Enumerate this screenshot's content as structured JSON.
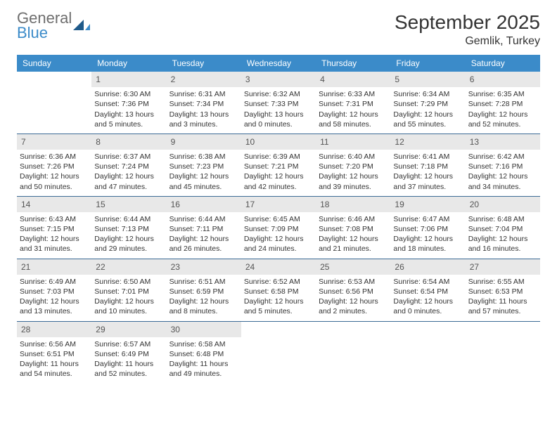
{
  "logo": {
    "line1": "General",
    "line2": "Blue"
  },
  "title": "September 2025",
  "location": "Gemlik, Turkey",
  "colors": {
    "header_bg": "#3b8bc9",
    "header_fg": "#ffffff",
    "daynum_bg": "#e8e8e8",
    "rule": "#3b6a95",
    "logo_gray": "#6e6e6e",
    "logo_blue": "#3b8bc9",
    "text": "#333333"
  },
  "day_headers": [
    "Sunday",
    "Monday",
    "Tuesday",
    "Wednesday",
    "Thursday",
    "Friday",
    "Saturday"
  ],
  "weeks": [
    [
      {
        "empty": true
      },
      {
        "num": "1",
        "sunrise": "Sunrise: 6:30 AM",
        "sunset": "Sunset: 7:36 PM",
        "daylight1": "Daylight: 13 hours",
        "daylight2": "and 5 minutes."
      },
      {
        "num": "2",
        "sunrise": "Sunrise: 6:31 AM",
        "sunset": "Sunset: 7:34 PM",
        "daylight1": "Daylight: 13 hours",
        "daylight2": "and 3 minutes."
      },
      {
        "num": "3",
        "sunrise": "Sunrise: 6:32 AM",
        "sunset": "Sunset: 7:33 PM",
        "daylight1": "Daylight: 13 hours",
        "daylight2": "and 0 minutes."
      },
      {
        "num": "4",
        "sunrise": "Sunrise: 6:33 AM",
        "sunset": "Sunset: 7:31 PM",
        "daylight1": "Daylight: 12 hours",
        "daylight2": "and 58 minutes."
      },
      {
        "num": "5",
        "sunrise": "Sunrise: 6:34 AM",
        "sunset": "Sunset: 7:29 PM",
        "daylight1": "Daylight: 12 hours",
        "daylight2": "and 55 minutes."
      },
      {
        "num": "6",
        "sunrise": "Sunrise: 6:35 AM",
        "sunset": "Sunset: 7:28 PM",
        "daylight1": "Daylight: 12 hours",
        "daylight2": "and 52 minutes."
      }
    ],
    [
      {
        "num": "7",
        "sunrise": "Sunrise: 6:36 AM",
        "sunset": "Sunset: 7:26 PM",
        "daylight1": "Daylight: 12 hours",
        "daylight2": "and 50 minutes."
      },
      {
        "num": "8",
        "sunrise": "Sunrise: 6:37 AM",
        "sunset": "Sunset: 7:24 PM",
        "daylight1": "Daylight: 12 hours",
        "daylight2": "and 47 minutes."
      },
      {
        "num": "9",
        "sunrise": "Sunrise: 6:38 AM",
        "sunset": "Sunset: 7:23 PM",
        "daylight1": "Daylight: 12 hours",
        "daylight2": "and 45 minutes."
      },
      {
        "num": "10",
        "sunrise": "Sunrise: 6:39 AM",
        "sunset": "Sunset: 7:21 PM",
        "daylight1": "Daylight: 12 hours",
        "daylight2": "and 42 minutes."
      },
      {
        "num": "11",
        "sunrise": "Sunrise: 6:40 AM",
        "sunset": "Sunset: 7:20 PM",
        "daylight1": "Daylight: 12 hours",
        "daylight2": "and 39 minutes."
      },
      {
        "num": "12",
        "sunrise": "Sunrise: 6:41 AM",
        "sunset": "Sunset: 7:18 PM",
        "daylight1": "Daylight: 12 hours",
        "daylight2": "and 37 minutes."
      },
      {
        "num": "13",
        "sunrise": "Sunrise: 6:42 AM",
        "sunset": "Sunset: 7:16 PM",
        "daylight1": "Daylight: 12 hours",
        "daylight2": "and 34 minutes."
      }
    ],
    [
      {
        "num": "14",
        "sunrise": "Sunrise: 6:43 AM",
        "sunset": "Sunset: 7:15 PM",
        "daylight1": "Daylight: 12 hours",
        "daylight2": "and 31 minutes."
      },
      {
        "num": "15",
        "sunrise": "Sunrise: 6:44 AM",
        "sunset": "Sunset: 7:13 PM",
        "daylight1": "Daylight: 12 hours",
        "daylight2": "and 29 minutes."
      },
      {
        "num": "16",
        "sunrise": "Sunrise: 6:44 AM",
        "sunset": "Sunset: 7:11 PM",
        "daylight1": "Daylight: 12 hours",
        "daylight2": "and 26 minutes."
      },
      {
        "num": "17",
        "sunrise": "Sunrise: 6:45 AM",
        "sunset": "Sunset: 7:09 PM",
        "daylight1": "Daylight: 12 hours",
        "daylight2": "and 24 minutes."
      },
      {
        "num": "18",
        "sunrise": "Sunrise: 6:46 AM",
        "sunset": "Sunset: 7:08 PM",
        "daylight1": "Daylight: 12 hours",
        "daylight2": "and 21 minutes."
      },
      {
        "num": "19",
        "sunrise": "Sunrise: 6:47 AM",
        "sunset": "Sunset: 7:06 PM",
        "daylight1": "Daylight: 12 hours",
        "daylight2": "and 18 minutes."
      },
      {
        "num": "20",
        "sunrise": "Sunrise: 6:48 AM",
        "sunset": "Sunset: 7:04 PM",
        "daylight1": "Daylight: 12 hours",
        "daylight2": "and 16 minutes."
      }
    ],
    [
      {
        "num": "21",
        "sunrise": "Sunrise: 6:49 AM",
        "sunset": "Sunset: 7:03 PM",
        "daylight1": "Daylight: 12 hours",
        "daylight2": "and 13 minutes."
      },
      {
        "num": "22",
        "sunrise": "Sunrise: 6:50 AM",
        "sunset": "Sunset: 7:01 PM",
        "daylight1": "Daylight: 12 hours",
        "daylight2": "and 10 minutes."
      },
      {
        "num": "23",
        "sunrise": "Sunrise: 6:51 AM",
        "sunset": "Sunset: 6:59 PM",
        "daylight1": "Daylight: 12 hours",
        "daylight2": "and 8 minutes."
      },
      {
        "num": "24",
        "sunrise": "Sunrise: 6:52 AM",
        "sunset": "Sunset: 6:58 PM",
        "daylight1": "Daylight: 12 hours",
        "daylight2": "and 5 minutes."
      },
      {
        "num": "25",
        "sunrise": "Sunrise: 6:53 AM",
        "sunset": "Sunset: 6:56 PM",
        "daylight1": "Daylight: 12 hours",
        "daylight2": "and 2 minutes."
      },
      {
        "num": "26",
        "sunrise": "Sunrise: 6:54 AM",
        "sunset": "Sunset: 6:54 PM",
        "daylight1": "Daylight: 12 hours",
        "daylight2": "and 0 minutes."
      },
      {
        "num": "27",
        "sunrise": "Sunrise: 6:55 AM",
        "sunset": "Sunset: 6:53 PM",
        "daylight1": "Daylight: 11 hours",
        "daylight2": "and 57 minutes."
      }
    ],
    [
      {
        "num": "28",
        "sunrise": "Sunrise: 6:56 AM",
        "sunset": "Sunset: 6:51 PM",
        "daylight1": "Daylight: 11 hours",
        "daylight2": "and 54 minutes."
      },
      {
        "num": "29",
        "sunrise": "Sunrise: 6:57 AM",
        "sunset": "Sunset: 6:49 PM",
        "daylight1": "Daylight: 11 hours",
        "daylight2": "and 52 minutes."
      },
      {
        "num": "30",
        "sunrise": "Sunrise: 6:58 AM",
        "sunset": "Sunset: 6:48 PM",
        "daylight1": "Daylight: 11 hours",
        "daylight2": "and 49 minutes."
      },
      {
        "empty": true
      },
      {
        "empty": true
      },
      {
        "empty": true
      },
      {
        "empty": true
      }
    ]
  ]
}
